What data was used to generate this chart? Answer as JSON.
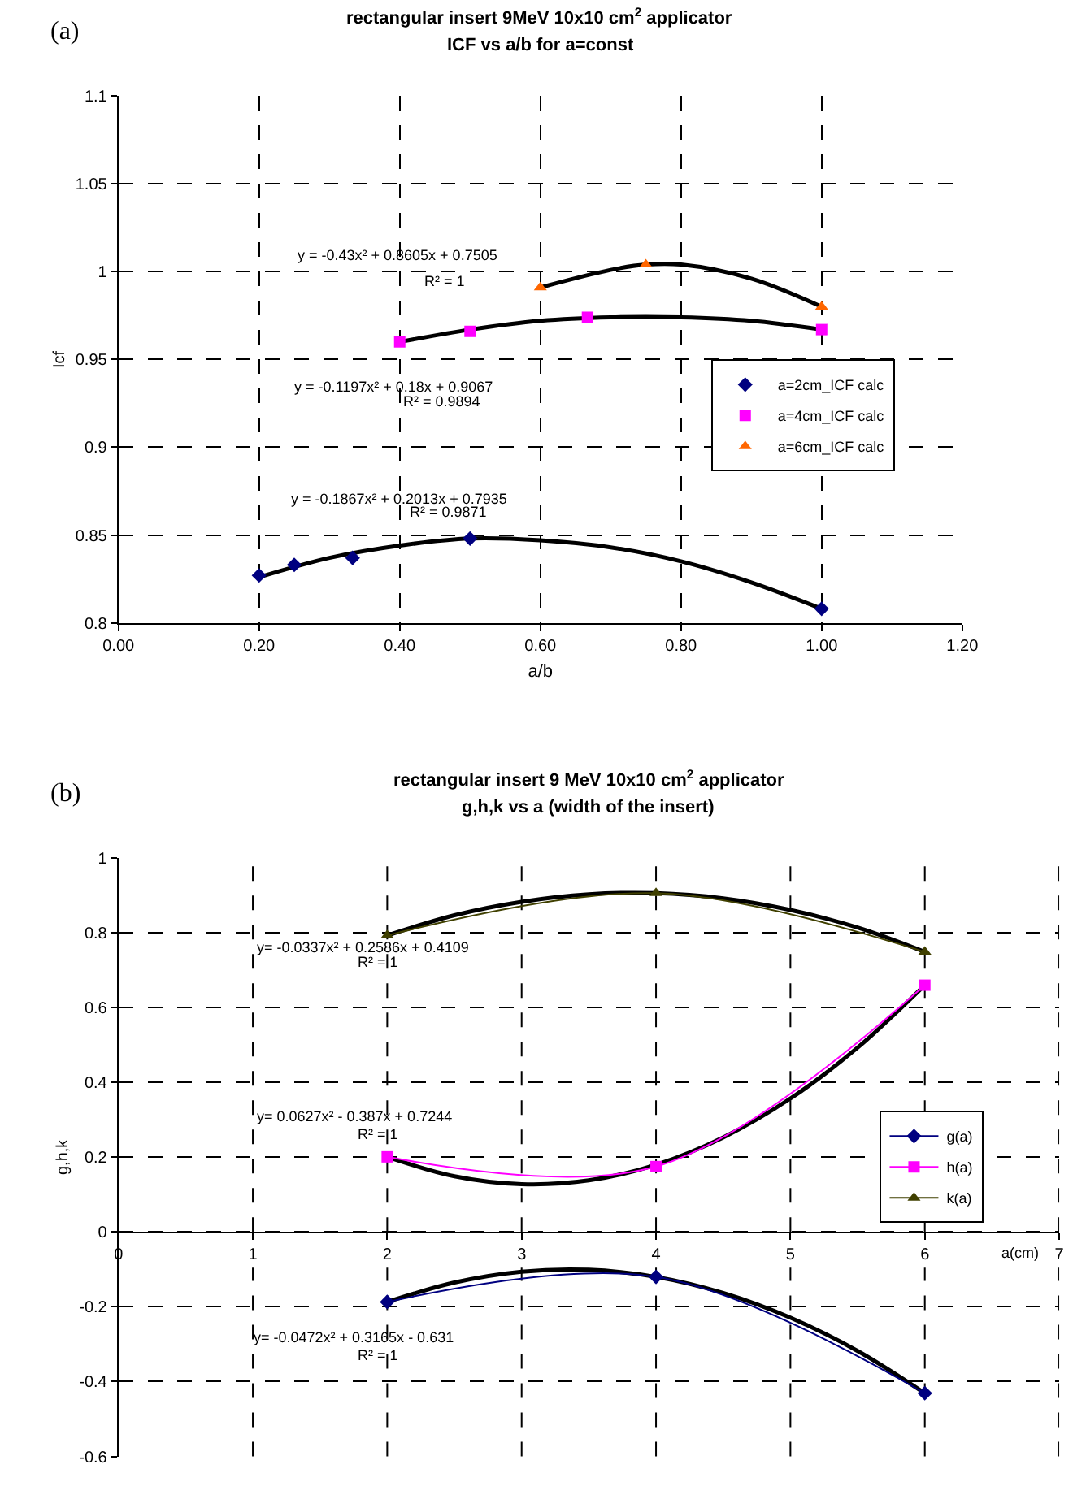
{
  "chart_data": [
    {
      "type": "scatter",
      "title": "rectangular insert 9MeV 10x10 cm$^{2}$ applicator",
      "subtitle": "ICF vs a/b for a=const",
      "xlabel": "a/b",
      "ylabel": "Icf",
      "xlim": [
        0,
        1.2
      ],
      "xticks": [
        {
          "value": 0,
          "label": "0.00"
        },
        {
          "value": 0.2,
          "label": "0.20"
        },
        {
          "value": 0.4,
          "label": "0.40"
        },
        {
          "value": 0.6,
          "label": "0.60"
        },
        {
          "value": 0.8,
          "label": "0.80"
        },
        {
          "value": 1.0,
          "label": "1.00"
        },
        {
          "value": 1.2,
          "label": "1.20"
        }
      ],
      "ylim": [
        0.8,
        1.1
      ],
      "yticks": [
        0.8,
        0.85,
        0.9,
        0.95,
        1,
        1.05,
        1.1
      ],
      "grid": true,
      "legend": "right",
      "series": [
        {
          "type": "line",
          "color": "#000000",
          "marker": "none",
          "x": [
            0.2,
            0.3,
            0.4,
            0.5,
            0.6,
            0.7,
            0.8,
            0.9,
            1.0
          ],
          "values": [
            0.826,
            0.837,
            0.844,
            0.848,
            0.847,
            0.843,
            0.835,
            0.823,
            0.808
          ]
        },
        {
          "type": "line",
          "color": "#000000",
          "marker": "none",
          "x": [
            0.4,
            0.5,
            0.6,
            0.7,
            0.8,
            0.9,
            1.0
          ],
          "values": [
            0.96,
            0.967,
            0.972,
            0.974,
            0.974,
            0.972,
            0.967
          ]
        },
        {
          "type": "line",
          "color": "#000000",
          "marker": "none",
          "x": [
            0.6,
            0.7,
            0.75,
            0.8,
            0.9,
            1.0
          ],
          "values": [
            0.991,
            1.001,
            1.004,
            1.004,
            0.996,
            0.98
          ]
        },
        {
          "name": "a=2cm_ICF calc",
          "color": "#000080",
          "marker": "diamond",
          "x": [
            0.2,
            0.25,
            0.333,
            0.5,
            1.0
          ],
          "values": [
            0.827,
            0.833,
            0.837,
            0.848,
            0.808
          ]
        },
        {
          "name": "a=4cm_ICF calc",
          "color": "#ff00ff",
          "marker": "square",
          "x": [
            0.4,
            0.5,
            0.667,
            1.0
          ],
          "values": [
            0.96,
            0.966,
            0.974,
            0.967
          ]
        },
        {
          "name": "a=6cm_ICF calc",
          "color": "#ff6600",
          "marker": "triangle",
          "x": [
            0.6,
            0.75,
            1.0
          ],
          "values": [
            0.991,
            1.004,
            0.98
          ]
        }
      ],
      "annotations": [
        "(a)",
        "y = -0.43x² + 0.8605x + 0.7505",
        "R² = 1",
        "y = -0.1197x² + 0.18x + 0.9067",
        "R² = 0.9894",
        "y = -0.1867x² + 0.2013x + 0.7935",
        "R² = 0.9871"
      ]
    },
    {
      "type": "line",
      "title": "rectangular insert 9 MeV 10x10 cm$^{2}$ applicator",
      "subtitle": "g,h,k vs a (width of the insert)",
      "xlabel": "a(cm)",
      "ylabel": "g,h,k",
      "xlim": [
        0,
        7
      ],
      "xticks": [
        0,
        1,
        2,
        3,
        4,
        5,
        6,
        7
      ],
      "ylim": [
        -0.6,
        1
      ],
      "yticks": [
        -0.6,
        -0.4,
        -0.2,
        0,
        0.2,
        0.4,
        0.6,
        0.8,
        1
      ],
      "grid": true,
      "legend": "right",
      "series": [
        {
          "name": "g(a)",
          "color": "#000080",
          "marker": "diamond",
          "x": [
            2,
            4,
            6
          ],
          "values": [
            -0.187,
            -0.12,
            -0.431
          ]
        },
        {
          "name": "h(a)",
          "color": "#ff00ff",
          "marker": "square",
          "x": [
            2,
            4,
            6
          ],
          "values": [
            0.201,
            0.175,
            0.66
          ]
        },
        {
          "name": "k(a)",
          "color": "#404000",
          "marker": "triangle",
          "x": [
            2,
            4,
            6
          ],
          "values": [
            0.793,
            0.906,
            0.749
          ]
        },
        {
          "color": "#000000",
          "marker": "none",
          "x": [
            2,
            2.5,
            3,
            3.5,
            4,
            4.5,
            5,
            5.5,
            6
          ],
          "values": [
            0.793,
            0.847,
            0.883,
            0.903,
            0.906,
            0.892,
            0.861,
            0.814,
            0.749
          ]
        },
        {
          "color": "#000000",
          "marker": "none",
          "x": [
            2,
            2.5,
            3,
            3.5,
            4,
            4.5,
            5,
            5.5,
            6
          ],
          "values": [
            0.201,
            0.149,
            0.128,
            0.138,
            0.18,
            0.253,
            0.357,
            0.493,
            0.66
          ]
        },
        {
          "color": "#000000",
          "marker": "none",
          "x": [
            2,
            2.5,
            3,
            3.5,
            4,
            4.5,
            5,
            5.5,
            6
          ],
          "values": [
            -0.187,
            -0.135,
            -0.106,
            -0.101,
            -0.12,
            -0.163,
            -0.229,
            -0.318,
            -0.431
          ]
        }
      ],
      "annotations": [
        "(b)",
        "y= -0.0337x² + 0.2586x + 0.4109",
        "R² = 1",
        "y= 0.0627x² - 0.387x + 0.7244",
        "R² = 1",
        "y= -0.0472x² + 0.3165x - 0.631",
        "R² = 1"
      ]
    }
  ]
}
